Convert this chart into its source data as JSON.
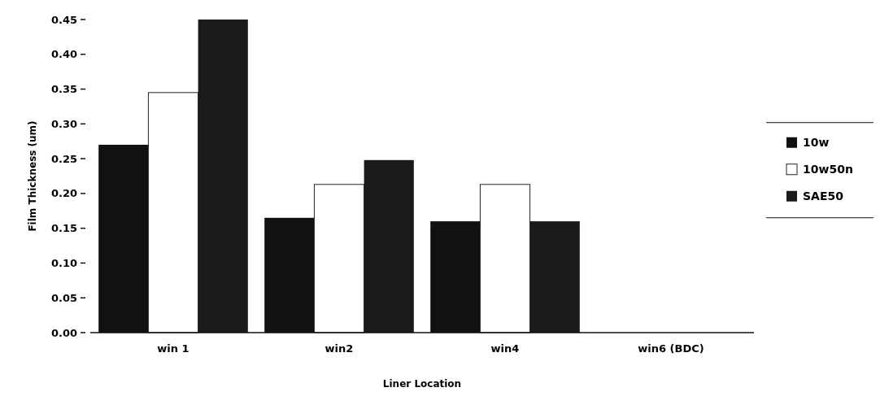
{
  "chart_data": {
    "type": "bar",
    "xlabel": "Liner Location",
    "ylabel": "Film Thickness (um)",
    "categories": [
      "win 1",
      "win2",
      "win4",
      "win6 (BDC)"
    ],
    "series": [
      {
        "name": "10w",
        "color": "#111111",
        "values": [
          0.27,
          0.165,
          0.16,
          null
        ]
      },
      {
        "name": "10w50n",
        "color": "#ffffff",
        "values": [
          0.345,
          0.213,
          0.213,
          null
        ]
      },
      {
        "name": "SAE50",
        "color": "#1a1a1a",
        "values": [
          0.45,
          0.248,
          0.16,
          null
        ]
      }
    ],
    "ylim": [
      0,
      0.45
    ],
    "yticks": [
      {
        "value": 0,
        "label": "0.00"
      },
      {
        "value": 0.05,
        "label": "0.05"
      },
      {
        "value": 0.1,
        "label": "0.10"
      },
      {
        "value": 0.15,
        "label": "0.15"
      },
      {
        "value": 0.2,
        "label": "0.20"
      },
      {
        "value": 0.25,
        "label": "0.25"
      },
      {
        "value": 0.3,
        "label": "0.30"
      },
      {
        "value": 0.35,
        "label": "0.35"
      },
      {
        "value": 0.4,
        "label": "0.40"
      },
      {
        "value": 0.45,
        "label": "0.45"
      }
    ],
    "grid": false,
    "legend": "right"
  }
}
